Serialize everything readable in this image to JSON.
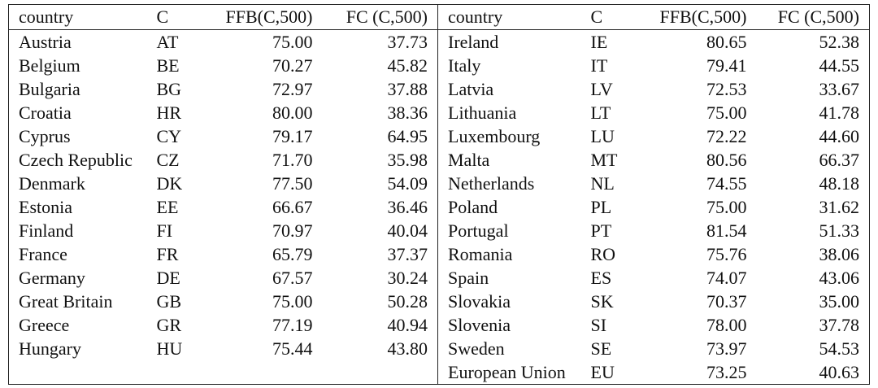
{
  "headers": [
    "country",
    "C",
    "FFB(C,500)",
    "FC (C,500)"
  ],
  "left_rows": [
    {
      "country": "Austria",
      "code": "AT",
      "ffb": "75.00",
      "fc": "37.73"
    },
    {
      "country": "Belgium",
      "code": "BE",
      "ffb": "70.27",
      "fc": "45.82"
    },
    {
      "country": "Bulgaria",
      "code": "BG",
      "ffb": "72.97",
      "fc": "37.88"
    },
    {
      "country": "Croatia",
      "code": "HR",
      "ffb": "80.00",
      "fc": "38.36"
    },
    {
      "country": "Cyprus",
      "code": "CY",
      "ffb": "79.17",
      "fc": "64.95"
    },
    {
      "country": "Czech Republic",
      "code": "CZ",
      "ffb": "71.70",
      "fc": "35.98"
    },
    {
      "country": "Denmark",
      "code": "DK",
      "ffb": "77.50",
      "fc": "54.09"
    },
    {
      "country": "Estonia",
      "code": "EE",
      "ffb": "66.67",
      "fc": "36.46"
    },
    {
      "country": "Finland",
      "code": "FI",
      "ffb": "70.97",
      "fc": "40.04"
    },
    {
      "country": "France",
      "code": "FR",
      "ffb": "65.79",
      "fc": "37.37"
    },
    {
      "country": "Germany",
      "code": "DE",
      "ffb": "67.57",
      "fc": "30.24"
    },
    {
      "country": "Great Britain",
      "code": "GB",
      "ffb": "75.00",
      "fc": "50.28"
    },
    {
      "country": "Greece",
      "code": "GR",
      "ffb": "77.19",
      "fc": "40.94"
    },
    {
      "country": "Hungary",
      "code": "HU",
      "ffb": "75.44",
      "fc": "43.80"
    },
    {
      "country": "",
      "code": "",
      "ffb": "",
      "fc": ""
    }
  ],
  "right_rows": [
    {
      "country": "Ireland",
      "code": "IE",
      "ffb": "80.65",
      "fc": "52.38"
    },
    {
      "country": "Italy",
      "code": "IT",
      "ffb": "79.41",
      "fc": "44.55"
    },
    {
      "country": "Latvia",
      "code": "LV",
      "ffb": "72.53",
      "fc": "33.67"
    },
    {
      "country": "Lithuania",
      "code": "LT",
      "ffb": "75.00",
      "fc": "41.78"
    },
    {
      "country": "Luxembourg",
      "code": "LU",
      "ffb": "72.22",
      "fc": "44.60"
    },
    {
      "country": "Malta",
      "code": "MT",
      "ffb": "80.56",
      "fc": "66.37"
    },
    {
      "country": "Netherlands",
      "code": "NL",
      "ffb": "74.55",
      "fc": "48.18"
    },
    {
      "country": "Poland",
      "code": "PL",
      "ffb": "75.00",
      "fc": "31.62"
    },
    {
      "country": "Portugal",
      "code": "PT",
      "ffb": "81.54",
      "fc": "51.33"
    },
    {
      "country": "Romania",
      "code": "RO",
      "ffb": "75.76",
      "fc": "38.06"
    },
    {
      "country": "Spain",
      "code": "ES",
      "ffb": "74.07",
      "fc": "43.06"
    },
    {
      "country": "Slovakia",
      "code": "SK",
      "ffb": "70.37",
      "fc": "35.00"
    },
    {
      "country": "Slovenia",
      "code": "SI",
      "ffb": "78.00",
      "fc": "37.78"
    },
    {
      "country": "Sweden",
      "code": "SE",
      "ffb": "73.97",
      "fc": "54.53"
    },
    {
      "country": "European Union",
      "code": "EU",
      "ffb": "73.25",
      "fc": "40.63"
    }
  ]
}
